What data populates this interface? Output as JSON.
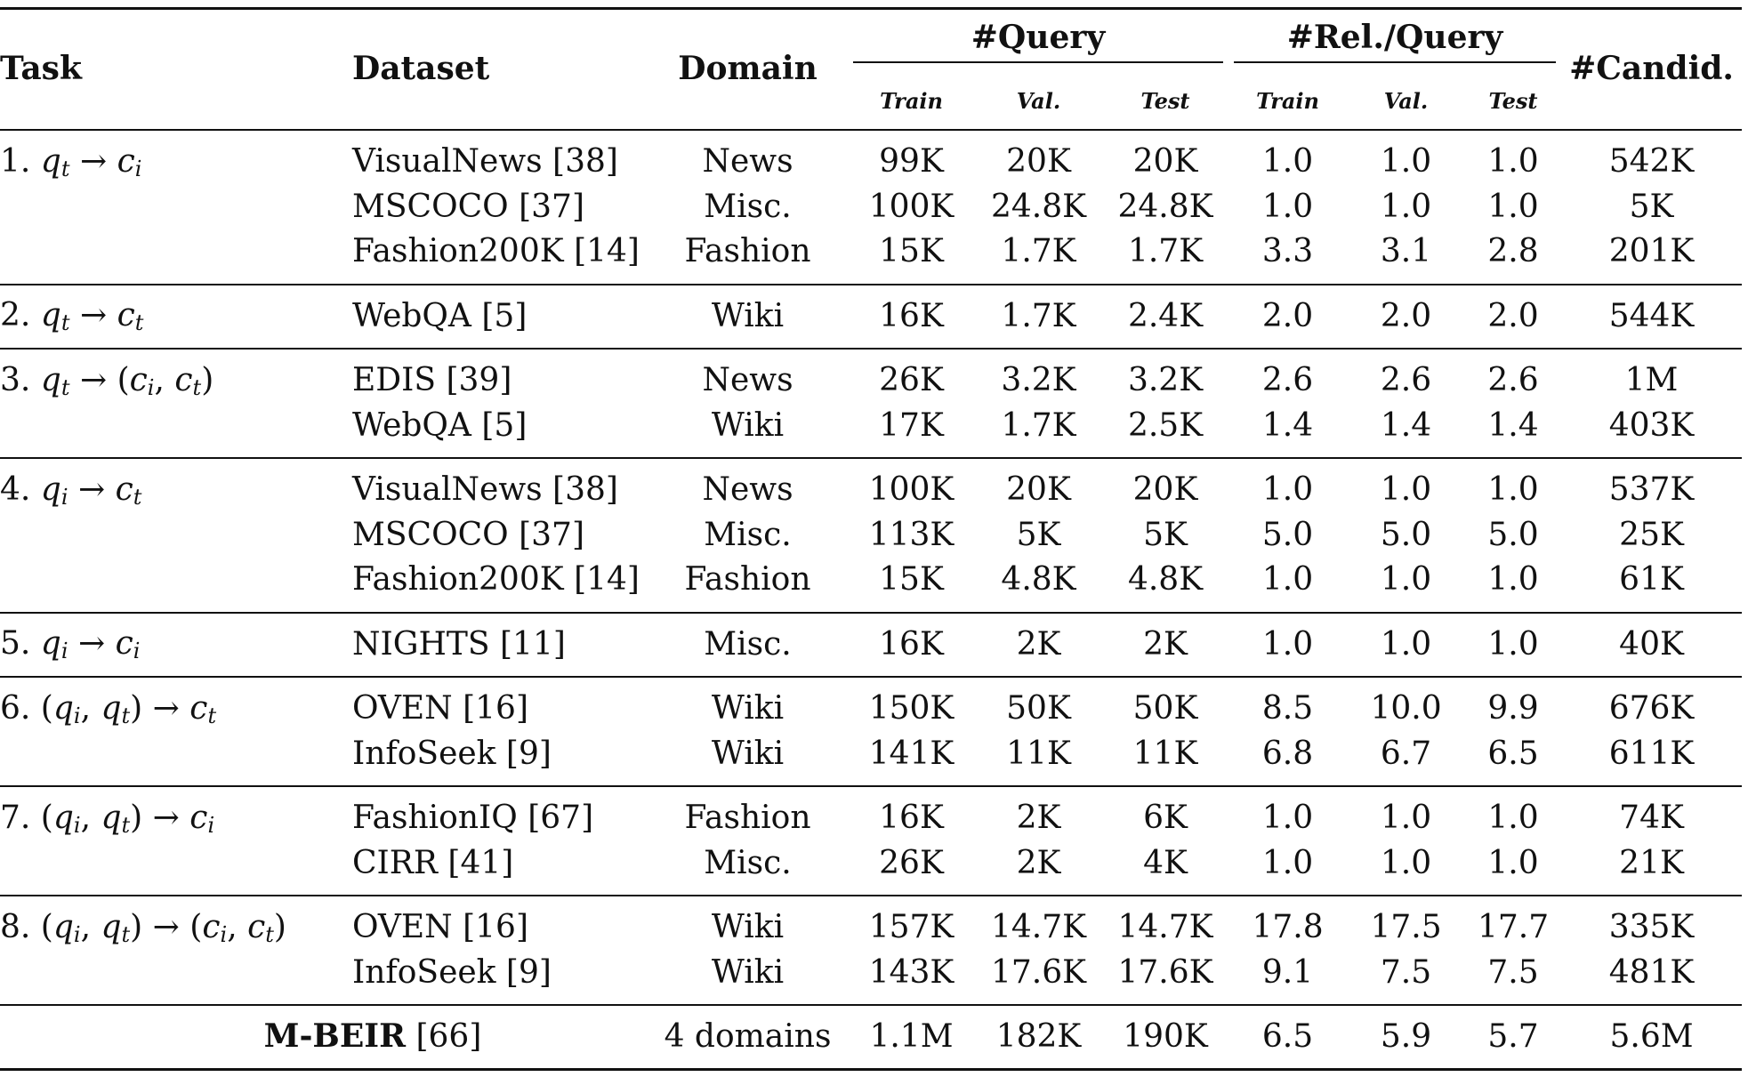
{
  "headers": {
    "task": "Task",
    "dataset": "Dataset",
    "domain": "Domain",
    "query_group": "#Query",
    "rel_group": "#Rel./Query",
    "candid": "#Candid.",
    "sub": [
      "Train",
      "Val.",
      "Test",
      "Train",
      "Val.",
      "Test"
    ]
  },
  "groups": [
    {
      "task": {
        "num": "1.",
        "q": "q",
        "q_sub": "t",
        "c": "c",
        "c_sub": "i"
      },
      "rows": [
        {
          "dataset": "VisualNews [38]",
          "domain": "News",
          "vals": [
            "99K",
            "20K",
            "20K",
            "1.0",
            "1.0",
            "1.0",
            "542K"
          ]
        },
        {
          "dataset": "MSCOCO [37]",
          "domain": "Misc.",
          "vals": [
            "100K",
            "24.8K",
            "24.8K",
            "1.0",
            "1.0",
            "1.0",
            "5K"
          ]
        },
        {
          "dataset": "Fashion200K [14]",
          "domain": "Fashion",
          "vals": [
            "15K",
            "1.7K",
            "1.7K",
            "3.3",
            "3.1",
            "2.8",
            "201K"
          ]
        }
      ]
    },
    {
      "task": {
        "num": "2.",
        "q": "q",
        "q_sub": "t",
        "c": "c",
        "c_sub": "t"
      },
      "rows": [
        {
          "dataset": "WebQA [5]",
          "domain": "Wiki",
          "vals": [
            "16K",
            "1.7K",
            "2.4K",
            "2.0",
            "2.0",
            "2.0",
            "544K"
          ]
        }
      ]
    },
    {
      "task": {
        "num": "3.",
        "q": "q",
        "q_sub": "t",
        "c_pair": true
      },
      "rows": [
        {
          "dataset": "EDIS [39]",
          "domain": "News",
          "vals": [
            "26K",
            "3.2K",
            "3.2K",
            "2.6",
            "2.6",
            "2.6",
            "1M"
          ]
        },
        {
          "dataset": "WebQA [5]",
          "domain": "Wiki",
          "vals": [
            "17K",
            "1.7K",
            "2.5K",
            "1.4",
            "1.4",
            "1.4",
            "403K"
          ]
        }
      ]
    },
    {
      "task": {
        "num": "4.",
        "q": "q",
        "q_sub": "i",
        "c": "c",
        "c_sub": "t"
      },
      "rows": [
        {
          "dataset": "VisualNews [38]",
          "domain": "News",
          "vals": [
            "100K",
            "20K",
            "20K",
            "1.0",
            "1.0",
            "1.0",
            "537K"
          ]
        },
        {
          "dataset": "MSCOCO [37]",
          "domain": "Misc.",
          "vals": [
            "113K",
            "5K",
            "5K",
            "5.0",
            "5.0",
            "5.0",
            "25K"
          ]
        },
        {
          "dataset": "Fashion200K [14]",
          "domain": "Fashion",
          "vals": [
            "15K",
            "4.8K",
            "4.8K",
            "1.0",
            "1.0",
            "1.0",
            "61K"
          ]
        }
      ]
    },
    {
      "task": {
        "num": "5.",
        "q": "q",
        "q_sub": "i",
        "c": "c",
        "c_sub": "i"
      },
      "rows": [
        {
          "dataset": "NIGHTS [11]",
          "domain": "Misc.",
          "vals": [
            "16K",
            "2K",
            "2K",
            "1.0",
            "1.0",
            "1.0",
            "40K"
          ]
        }
      ]
    },
    {
      "task": {
        "num": "6.",
        "q_pair": true,
        "c": "c",
        "c_sub": "t"
      },
      "rows": [
        {
          "dataset": "OVEN [16]",
          "domain": "Wiki",
          "vals": [
            "150K",
            "50K",
            "50K",
            "8.5",
            "10.0",
            "9.9",
            "676K"
          ]
        },
        {
          "dataset": "InfoSeek [9]",
          "domain": "Wiki",
          "vals": [
            "141K",
            "11K",
            "11K",
            "6.8",
            "6.7",
            "6.5",
            "611K"
          ]
        }
      ]
    },
    {
      "task": {
        "num": "7.",
        "q_pair": true,
        "c": "c",
        "c_sub": "i"
      },
      "rows": [
        {
          "dataset": "FashionIQ [67]",
          "domain": "Fashion",
          "vals": [
            "16K",
            "2K",
            "6K",
            "1.0",
            "1.0",
            "1.0",
            "74K"
          ]
        },
        {
          "dataset": "CIRR [41]",
          "domain": "Misc.",
          "vals": [
            "26K",
            "2K",
            "4K",
            "1.0",
            "1.0",
            "1.0",
            "21K"
          ]
        }
      ]
    },
    {
      "task": {
        "num": "8.",
        "q_pair": true,
        "c_pair": true
      },
      "rows": [
        {
          "dataset": "OVEN [16]",
          "domain": "Wiki",
          "vals": [
            "157K",
            "14.7K",
            "14.7K",
            "17.8",
            "17.5",
            "17.7",
            "335K"
          ]
        },
        {
          "dataset": "InfoSeek [9]",
          "domain": "Wiki",
          "vals": [
            "143K",
            "17.6K",
            "17.6K",
            "9.1",
            "7.5",
            "7.5",
            "481K"
          ]
        }
      ]
    }
  ],
  "total": {
    "name": "M-BEIR",
    "ref": " [66]",
    "domain": "4 domains",
    "vals": [
      "1.1M",
      "182K",
      "190K",
      "6.5",
      "5.9",
      "5.7",
      "5.6M"
    ]
  },
  "symbols": {
    "arrow": "→",
    "open": "(",
    "close": ")",
    "comma": ", "
  }
}
